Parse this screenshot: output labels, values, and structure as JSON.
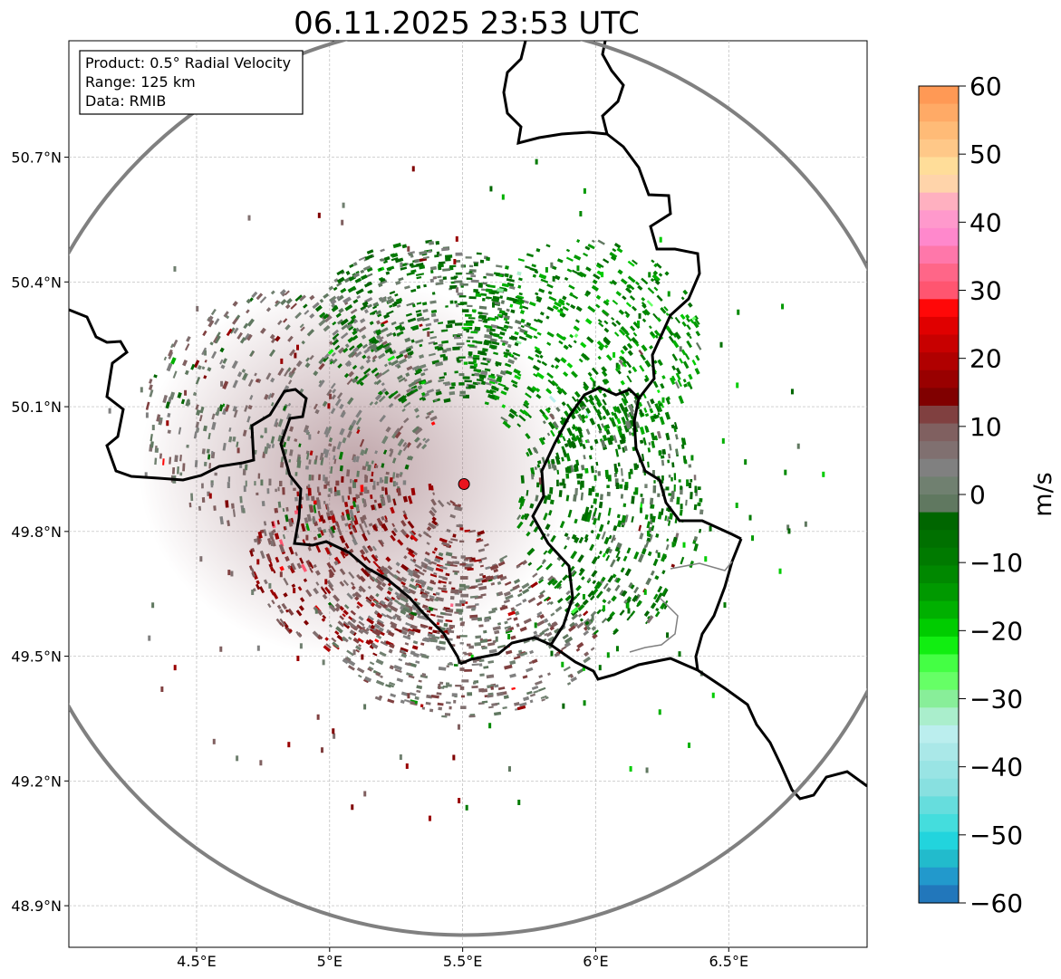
{
  "chart_data": {
    "type": "heatmap",
    "title": "06.11.2025 23:53 UTC",
    "info_box": {
      "lines": [
        "Product: 0.5° Radial Velocity",
        "Range: 125 km",
        "Data: RMIB"
      ]
    },
    "map": {
      "lon_range": [
        4.02,
        7.02
      ],
      "lat_range": [
        48.8,
        50.98
      ],
      "x_ticks": [
        {
          "value": 4.5,
          "label": "4.5°E"
        },
        {
          "value": 5.0,
          "label": "5°E"
        },
        {
          "value": 5.5,
          "label": "5.5°E"
        },
        {
          "value": 6.0,
          "label": "6°E"
        },
        {
          "value": 6.5,
          "label": "6.5°E"
        }
      ],
      "y_ticks": [
        {
          "value": 48.9,
          "label": "48.9°N"
        },
        {
          "value": 49.2,
          "label": "49.2°N"
        },
        {
          "value": 49.5,
          "label": "49.5°N"
        },
        {
          "value": 49.8,
          "label": "49.8°N"
        },
        {
          "value": 50.1,
          "label": "50.1°N"
        },
        {
          "value": 50.4,
          "label": "50.4°N"
        },
        {
          "value": 50.7,
          "label": "50.7°N"
        }
      ],
      "gridlines": true,
      "radar_site": {
        "lon": 5.505,
        "lat": 49.914,
        "color": "#e8141e"
      },
      "range_ring_km": 125
    },
    "regions": [
      {
        "name": "west-receding",
        "lon": 4.85,
        "lat": 50.08,
        "r_lon": 0.55,
        "r_lat": 0.3,
        "vel": 4
      },
      {
        "name": "southwest-receding",
        "lon": 5.15,
        "lat": 49.72,
        "r_lon": 0.45,
        "r_lat": 0.22,
        "vel": 12
      },
      {
        "name": "south-mixed",
        "lon": 5.5,
        "lat": 49.55,
        "r_lon": 0.5,
        "r_lat": 0.2,
        "vel": 5
      },
      {
        "name": "north-center",
        "lon": 5.35,
        "lat": 50.3,
        "r_lon": 0.4,
        "r_lat": 0.2,
        "vel": -3
      },
      {
        "name": "northeast-approaching",
        "lon": 5.95,
        "lat": 50.25,
        "r_lon": 0.45,
        "r_lat": 0.25,
        "vel": -12
      },
      {
        "name": "east-approaching",
        "lon": 6.05,
        "lat": 49.85,
        "r_lon": 0.35,
        "r_lat": 0.3,
        "vel": -6
      }
    ],
    "colorbar": {
      "label": "m/s",
      "vmin": -60,
      "vmax": 60,
      "ticks": [
        60,
        50,
        40,
        30,
        20,
        10,
        0,
        -10,
        -20,
        -30,
        -40,
        -50,
        -60
      ],
      "tick_labels": [
        "60",
        "50",
        "40",
        "30",
        "20",
        "10",
        "0",
        "−10",
        "−20",
        "−30",
        "−40",
        "−50",
        "−60"
      ],
      "colors_top_to_bottom": [
        "#ff9955",
        "#ffaa66",
        "#ffbb77",
        "#ffc888",
        "#ffdd99",
        "#ffd4aa",
        "#ffb0c0",
        "#ff99cc",
        "#ff88cc",
        "#ff77aa",
        "#ff6688",
        "#ff5570",
        "#ff0808",
        "#e00000",
        "#c80000",
        "#b00000",
        "#990000",
        "#800000",
        "#804040",
        "#806060",
        "#807070",
        "#808080",
        "#708070",
        "#607860",
        "#006600",
        "#007000",
        "#007a00",
        "#008800",
        "#009900",
        "#00b000",
        "#00cc00",
        "#11ee11",
        "#44ff44",
        "#66ff66",
        "#88ee99",
        "#aaeecc",
        "#bbeeee",
        "#aae8e8",
        "#99e4e4",
        "#88e0e0",
        "#66dddd",
        "#44dddd",
        "#22d4dd",
        "#22bbcc",
        "#2299cc",
        "#2277bb"
      ]
    }
  }
}
